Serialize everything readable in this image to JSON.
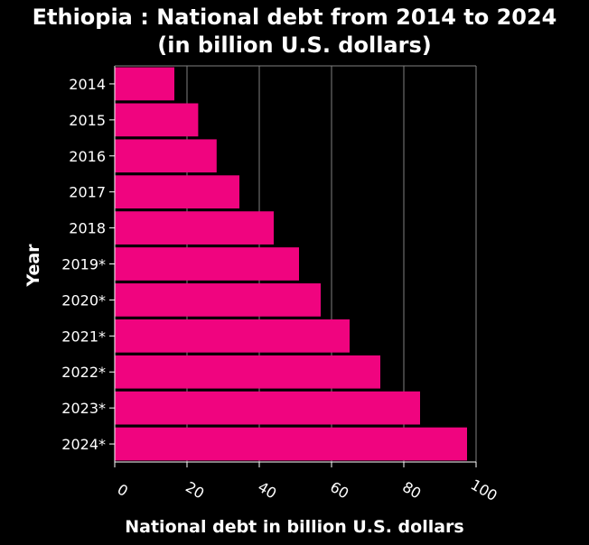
{
  "chart_data": {
    "type": "bar",
    "orientation": "horizontal",
    "title_line1": "Ethiopia : National debt from 2014 to 2024",
    "title_line2": "(in billion U.S. dollars)",
    "xlabel": "National debt in billion U.S. dollars",
    "ylabel": "Year",
    "xlim": [
      0,
      100
    ],
    "xticks": [
      0,
      20,
      40,
      60,
      80,
      100
    ],
    "grid": "vertical",
    "categories": [
      "2014",
      "2015",
      "2016",
      "2017",
      "2018",
      "2019*",
      "2020*",
      "2021*",
      "2022*",
      "2023*",
      "2024*"
    ],
    "values": [
      16.5,
      23.1,
      28.2,
      34.5,
      44.0,
      51.0,
      57.0,
      65.0,
      73.5,
      84.5,
      97.5
    ],
    "colors": {
      "bar": "#f0047f",
      "background": "#000000",
      "text": "#ffffff",
      "grid": "#808080",
      "axis": "#ffffff"
    }
  }
}
